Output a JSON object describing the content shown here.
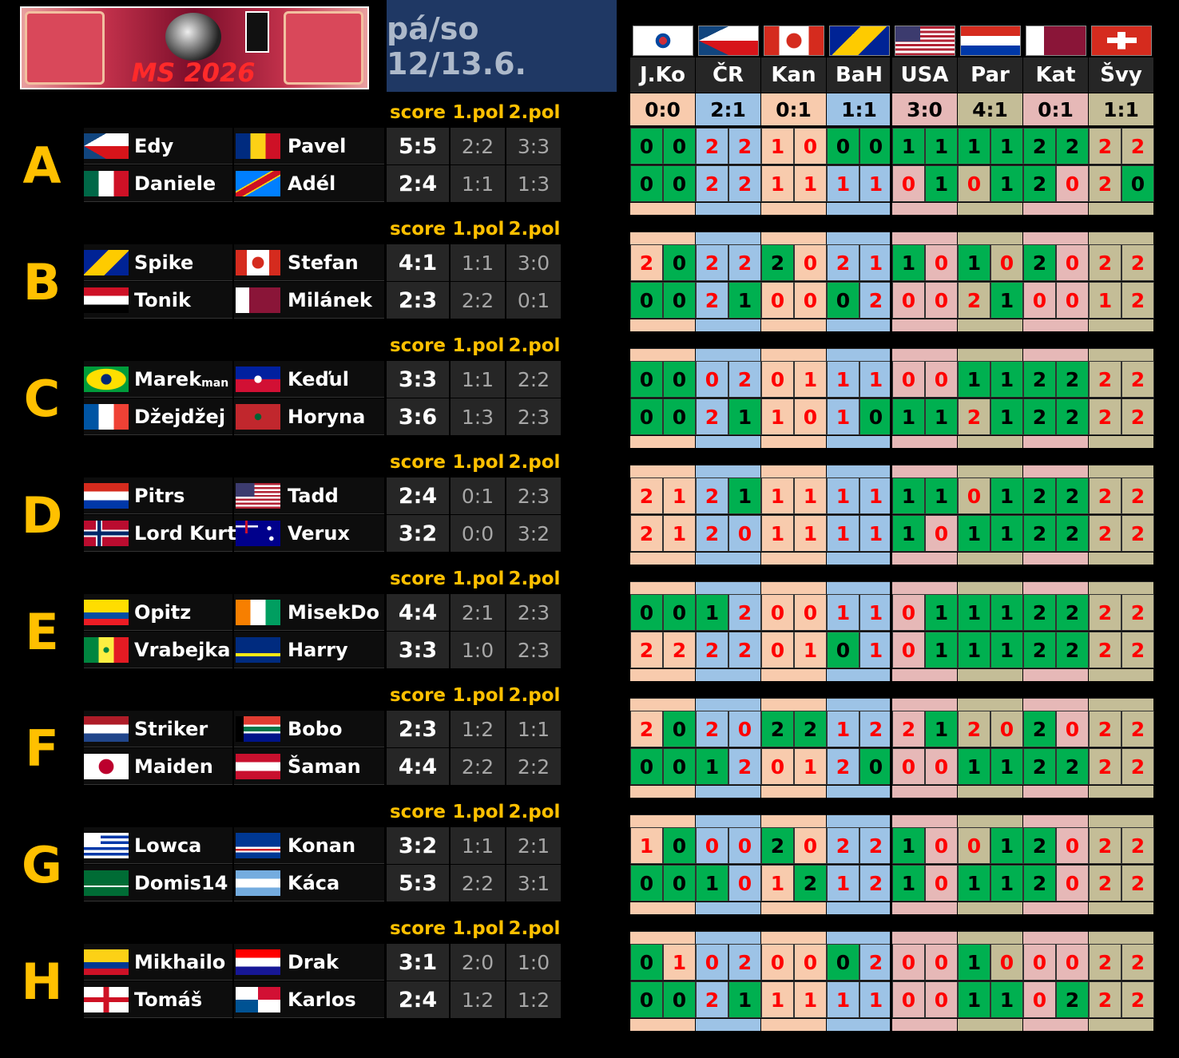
{
  "header": {
    "logo_text": "MS 2026",
    "title": "pá/so 12/13.6."
  },
  "matches": [
    {
      "team": "J.Ko",
      "result": "0:0",
      "color": "#f8cbad"
    },
    {
      "team": "ČR",
      "result": "2:1",
      "color": "#9dc3e6"
    },
    {
      "team": "Kan",
      "result": "0:1",
      "color": "#f8cbad"
    },
    {
      "team": "BaH",
      "result": "1:1",
      "color": "#9dc3e6"
    },
    {
      "team": "USA",
      "result": "3:0",
      "color": "#e6b8b7"
    },
    {
      "team": "Par",
      "result": "4:1",
      "color": "#c4bd97"
    },
    {
      "team": "Kat",
      "result": "0:1",
      "color": "#e6b8b7"
    },
    {
      "team": "Švy",
      "result": "1:1",
      "color": "#c4bd97"
    }
  ],
  "hit_color": "#00b050",
  "groups": [
    {
      "label": "A",
      "columns": [
        "score",
        "1.pol",
        "2.pol"
      ],
      "rows": [
        {
          "player1": "Edy",
          "player2": "Pavel",
          "score": "5:5",
          "half1": "2:2",
          "half2": "3:3",
          "tips": [
            0,
            0,
            2,
            2,
            1,
            0,
            0,
            0,
            1,
            1,
            1,
            1,
            2,
            2,
            2,
            2
          ],
          "cell_colors": "GGRRRRGGGGGGGGRR"
        },
        {
          "player1": "Daniele",
          "player2": "Adél",
          "score": "2:4",
          "half1": "1:1",
          "half2": "1:3",
          "tips": [
            0,
            0,
            2,
            2,
            1,
            1,
            1,
            1,
            0,
            1,
            0,
            1,
            2,
            0,
            2,
            0
          ],
          "cell_colors": "GGRRRRRRRGRGGRRG"
        }
      ]
    },
    {
      "label": "B",
      "columns": [
        "score",
        "1.pol",
        "2.pol"
      ],
      "rows": [
        {
          "player1": "Spike",
          "player2": "Stefan",
          "score": "4:1",
          "half1": "1:1",
          "half2": "3:0",
          "tips": [
            2,
            0,
            2,
            2,
            2,
            0,
            2,
            1,
            1,
            0,
            1,
            0,
            2,
            0,
            2,
            2
          ],
          "cell_colors": "RGRRGRRRGRGRGRRR"
        },
        {
          "player1": "Tonik",
          "player2": "Milánek",
          "score": "2:3",
          "half1": "2:2",
          "half2": "0:1",
          "tips": [
            0,
            0,
            2,
            1,
            0,
            0,
            0,
            2,
            0,
            0,
            2,
            1,
            0,
            0,
            1,
            2
          ],
          "cell_colors": "GGRGRRGRRRRGRRRR"
        }
      ]
    },
    {
      "label": "C",
      "columns": [
        "score",
        "1.pol",
        "2.pol"
      ],
      "rows": [
        {
          "player1": "Marek",
          "player1_suffix": "man",
          "player2": "Keďul",
          "score": "3:3",
          "half1": "1:1",
          "half2": "2:2",
          "tips": [
            0,
            0,
            0,
            2,
            0,
            1,
            1,
            1,
            0,
            0,
            1,
            1,
            2,
            2,
            2,
            2
          ],
          "cell_colors": "GGRRRRRRRRGGGGRR"
        },
        {
          "player1": "Džejdžej",
          "player2": "Horyna",
          "score": "3:6",
          "half1": "1:3",
          "half2": "2:3",
          "tips": [
            0,
            0,
            2,
            1,
            1,
            0,
            1,
            0,
            1,
            1,
            2,
            1,
            2,
            2,
            2,
            2
          ],
          "cell_colors": "GGRGRRRGGGRGGGRR"
        }
      ]
    },
    {
      "label": "D",
      "columns": [
        "score",
        "1.pol",
        "2.pol"
      ],
      "rows": [
        {
          "player1": "Pitrs",
          "player2": "Tadd",
          "score": "2:4",
          "half1": "0:1",
          "half2": "2:3",
          "tips": [
            2,
            1,
            2,
            1,
            1,
            1,
            1,
            1,
            1,
            1,
            0,
            1,
            2,
            2,
            2,
            2
          ],
          "cell_colors": "RRRGRRRRGGRGGGRR"
        },
        {
          "player1": "Lord Kurt",
          "player2": "Verux",
          "score": "3:2",
          "half1": "0:0",
          "half2": "3:2",
          "tips": [
            2,
            1,
            2,
            0,
            1,
            1,
            1,
            1,
            1,
            0,
            1,
            1,
            2,
            2,
            2,
            2
          ],
          "cell_colors": "RRRRRRRRGRGGGGRR"
        }
      ]
    },
    {
      "label": "E",
      "columns": [
        "score",
        "1.pol",
        "2.pol"
      ],
      "rows": [
        {
          "player1": "Opitz",
          "player2": "MisekDo",
          "score": "4:4",
          "half1": "2:1",
          "half2": "2:3",
          "tips": [
            0,
            0,
            1,
            2,
            0,
            0,
            1,
            1,
            0,
            1,
            1,
            1,
            2,
            2,
            2,
            2
          ],
          "cell_colors": "GGGRRRRRRGGGGGRR"
        },
        {
          "player1": "Vrabejka",
          "player2": "Harry",
          "score": "3:3",
          "half1": "1:0",
          "half2": "2:3",
          "tips": [
            2,
            2,
            2,
            2,
            0,
            1,
            0,
            1,
            0,
            1,
            1,
            1,
            2,
            2,
            2,
            2
          ],
          "cell_colors": "RRRRRRGRRGGGGGRR"
        }
      ]
    },
    {
      "label": "F",
      "columns": [
        "score",
        "1.pol",
        "2.pol"
      ],
      "rows": [
        {
          "player1": "Striker",
          "player2": "Bobo",
          "score": "2:3",
          "half1": "1:2",
          "half2": "1:1",
          "tips": [
            2,
            0,
            2,
            0,
            2,
            2,
            1,
            2,
            2,
            1,
            2,
            0,
            2,
            0,
            2,
            2
          ],
          "cell_colors": "RGRRGGRRRGRRGRRR"
        },
        {
          "player1": "Maiden",
          "player2": "Šaman",
          "score": "4:4",
          "half1": "2:2",
          "half2": "2:2",
          "tips": [
            0,
            0,
            1,
            2,
            0,
            1,
            2,
            0,
            0,
            0,
            1,
            1,
            2,
            2,
            2,
            2
          ],
          "cell_colors": "GGGRRRRGRRGGGGRR"
        }
      ]
    },
    {
      "label": "G",
      "columns": [
        "score",
        "1.pol",
        "2.pol"
      ],
      "rows": [
        {
          "player1": "Lowca",
          "player2": "Konan",
          "score": "3:2",
          "half1": "1:1",
          "half2": "2:1",
          "tips": [
            1,
            0,
            0,
            0,
            2,
            0,
            2,
            2,
            1,
            0,
            0,
            1,
            2,
            0,
            2,
            2
          ],
          "cell_colors": "RGRRGRRRGRRGGRRR"
        },
        {
          "player1": "Domis14",
          "player2": "Káca",
          "score": "5:3",
          "half1": "2:2",
          "half2": "3:1",
          "tips": [
            0,
            0,
            1,
            0,
            1,
            2,
            1,
            2,
            1,
            0,
            1,
            1,
            2,
            0,
            2,
            2
          ],
          "cell_colors": "GGGRRGRRGRGGGRRR"
        }
      ]
    },
    {
      "label": "H",
      "columns": [
        "score",
        "1.pol",
        "2.pol"
      ],
      "rows": [
        {
          "player1": "Mikhailo",
          "player2": "Drak",
          "score": "3:1",
          "half1": "2:0",
          "half2": "1:0",
          "tips": [
            0,
            1,
            0,
            2,
            0,
            0,
            0,
            2,
            0,
            0,
            1,
            0,
            0,
            0,
            2,
            2
          ],
          "cell_colors": "GRRRRRGRRRGRRRRR"
        },
        {
          "player1": "Tomáš",
          "player2": "Karlos",
          "score": "2:4",
          "half1": "1:2",
          "half2": "1:2",
          "tips": [
            0,
            0,
            2,
            1,
            1,
            1,
            1,
            1,
            0,
            0,
            1,
            1,
            0,
            2,
            2,
            2
          ],
          "cell_colors": "GGRGRRRRRRGGRGRR"
        }
      ]
    }
  ]
}
